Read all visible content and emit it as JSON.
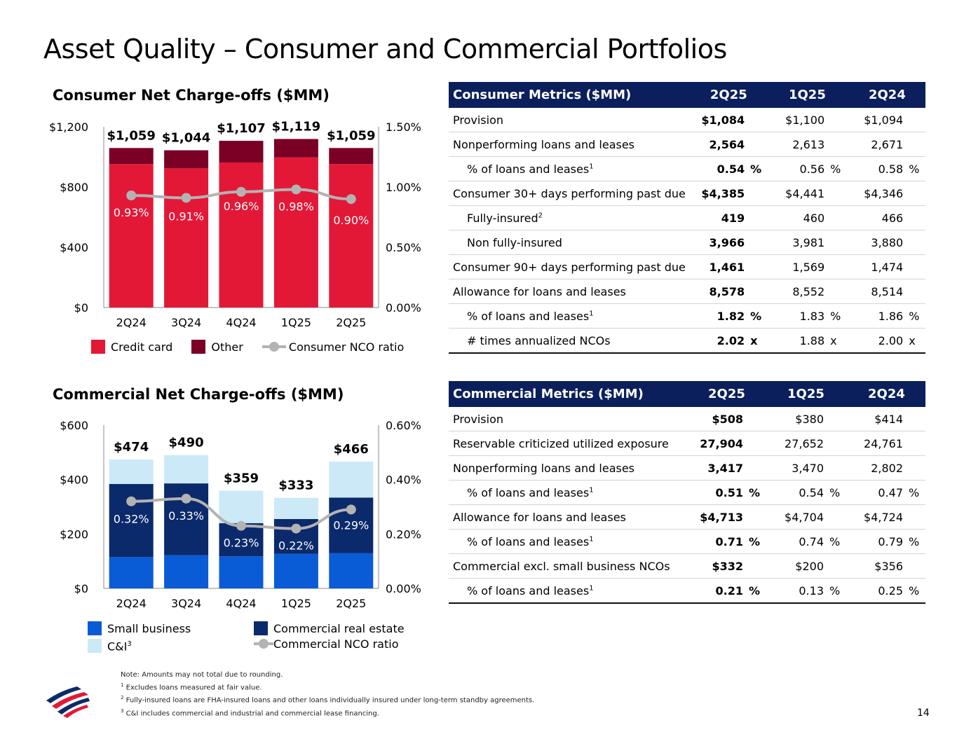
{
  "title": "Asset Quality – Consumer and Commercial Portfolios",
  "page_number": "14",
  "colors": {
    "credit_card": "#e31837",
    "other": "#7a0026",
    "nco": "#b3b3b3",
    "small_business": "#0a5bd6",
    "cre": "#0b2a6b",
    "ci": "#cce9f7",
    "header": "#0b1f5c"
  },
  "consumer_chart": {
    "title": "Consumer Net Charge-offs ($MM)"
  },
  "commercial_chart": {
    "title": "Commercial Net Charge-offs ($MM)"
  },
  "consumer_legend": {
    "credit_card": "Credit card",
    "other": "Other",
    "nco": "Consumer NCO ratio"
  },
  "commercial_legend": {
    "small_business": "Small business",
    "ci": "C&I",
    "ci_sup": "3",
    "cre": "Commercial real estate",
    "nco": "Commercial NCO ratio"
  },
  "chart_data": [
    {
      "type": "bar",
      "title": "Consumer Net Charge-offs ($MM)",
      "categories": [
        "2Q24",
        "3Q24",
        "4Q24",
        "1Q25",
        "2Q25"
      ],
      "series": [
        {
          "name": "Credit card",
          "values": [
            953,
            924,
            963,
            997,
            953
          ]
        },
        {
          "name": "Other",
          "values": [
            106,
            120,
            144,
            122,
            106
          ]
        }
      ],
      "totals": [
        "$1,059",
        "$1,044",
        "$1,107",
        "$1,119",
        "$1,059"
      ],
      "line": {
        "name": "Consumer NCO ratio",
        "values": [
          0.93,
          0.91,
          0.96,
          0.98,
          0.9
        ],
        "labels": [
          "0.93%",
          "0.91%",
          "0.96%",
          "0.98%",
          "0.90%"
        ]
      },
      "ylim": [
        0,
        1200
      ],
      "yticks": [
        "$0",
        "$400",
        "$800",
        "$1,200"
      ],
      "y2lim": [
        0,
        1.5
      ],
      "y2ticks": [
        "0.00%",
        "0.50%",
        "1.00%",
        "1.50%"
      ]
    },
    {
      "type": "bar",
      "title": "Commercial Net Charge-offs ($MM)",
      "categories": [
        "2Q24",
        "3Q24",
        "4Q24",
        "1Q25",
        "2Q25"
      ],
      "series": [
        {
          "name": "Small business",
          "values": [
            115,
            122,
            118,
            127,
            130
          ]
        },
        {
          "name": "Commercial real estate",
          "values": [
            269,
            264,
            122,
            128,
            204
          ]
        },
        {
          "name": "C&I",
          "values": [
            90,
            104,
            119,
            78,
            132
          ]
        }
      ],
      "totals": [
        "$474",
        "$490",
        "$359",
        "$333",
        "$466"
      ],
      "line": {
        "name": "Commercial NCO ratio",
        "values": [
          0.32,
          0.33,
          0.23,
          0.22,
          0.29
        ],
        "labels": [
          "0.32%",
          "0.33%",
          "0.23%",
          "0.22%",
          "0.29%"
        ]
      },
      "ylim": [
        0,
        600
      ],
      "yticks": [
        "$0",
        "$200",
        "$400",
        "$600"
      ],
      "y2lim": [
        0,
        0.6
      ],
      "y2ticks": [
        "0.00%",
        "0.20%",
        "0.40%",
        "0.60%"
      ]
    }
  ],
  "consumer_table": {
    "headers": [
      "Consumer Metrics ($MM)",
      "2Q25",
      "1Q25",
      "2Q24"
    ],
    "rows": [
      {
        "label": "Provision",
        "sup": "",
        "indent": false,
        "values": [
          "$1,084",
          "$1,100",
          "$1,094"
        ],
        "unit": ""
      },
      {
        "label": "Nonperforming loans and leases",
        "sup": "",
        "indent": false,
        "values": [
          "2,564",
          "2,613",
          "2,671"
        ],
        "unit": ""
      },
      {
        "label": "% of loans and leases",
        "sup": "1",
        "indent": true,
        "values": [
          "0.54",
          "0.56",
          "0.58"
        ],
        "unit": "%"
      },
      {
        "label": "Consumer 30+ days performing past due",
        "sup": "",
        "indent": false,
        "values": [
          "$4,385",
          "$4,441",
          "$4,346"
        ],
        "unit": ""
      },
      {
        "label": "Fully-insured",
        "sup": "2",
        "indent": true,
        "values": [
          "419",
          "460",
          "466"
        ],
        "unit": ""
      },
      {
        "label": "Non fully-insured",
        "sup": "",
        "indent": true,
        "values": [
          "3,966",
          "3,981",
          "3,880"
        ],
        "unit": ""
      },
      {
        "label": "Consumer 90+ days performing past due",
        "sup": "",
        "indent": false,
        "values": [
          "1,461",
          "1,569",
          "1,474"
        ],
        "unit": ""
      },
      {
        "label": "Allowance for loans and leases",
        "sup": "",
        "indent": false,
        "values": [
          "8,578",
          "8,552",
          "8,514"
        ],
        "unit": ""
      },
      {
        "label": "% of loans and leases",
        "sup": "1",
        "indent": true,
        "values": [
          "1.82",
          "1.83",
          "1.86"
        ],
        "unit": "%"
      },
      {
        "label": "# times annualized NCOs",
        "sup": "",
        "indent": true,
        "values": [
          "2.02",
          "1.88",
          "2.00"
        ],
        "unit": "x"
      }
    ]
  },
  "commercial_table": {
    "headers": [
      "Commercial Metrics ($MM)",
      "2Q25",
      "1Q25",
      "2Q24"
    ],
    "rows": [
      {
        "label": "Provision",
        "sup": "",
        "indent": false,
        "values": [
          "$508",
          "$380",
          "$414"
        ],
        "unit": ""
      },
      {
        "label": "Reservable criticized utilized exposure",
        "sup": "",
        "indent": false,
        "values": [
          "27,904",
          "27,652",
          "24,761"
        ],
        "unit": ""
      },
      {
        "label": "Nonperforming loans and leases",
        "sup": "",
        "indent": false,
        "values": [
          "3,417",
          "3,470",
          "2,802"
        ],
        "unit": ""
      },
      {
        "label": "% of loans and leases",
        "sup": "1",
        "indent": true,
        "values": [
          "0.51",
          "0.54",
          "0.47"
        ],
        "unit": "%"
      },
      {
        "label": "Allowance for loans and leases",
        "sup": "",
        "indent": false,
        "values": [
          "$4,713",
          "$4,704",
          "$4,724"
        ],
        "unit": ""
      },
      {
        "label": "% of loans and leases",
        "sup": "1",
        "indent": true,
        "values": [
          "0.71",
          "0.74",
          "0.79"
        ],
        "unit": "%"
      },
      {
        "label": "Commercial excl. small business NCOs",
        "sup": "",
        "indent": false,
        "values": [
          "$332",
          "$200",
          "$356"
        ],
        "unit": ""
      },
      {
        "label": "% of loans and leases",
        "sup": "1",
        "indent": true,
        "values": [
          "0.21",
          "0.13",
          "0.25"
        ],
        "unit": "%"
      }
    ]
  },
  "footnotes": [
    {
      "sup": "",
      "text": "Note: Amounts may not total due to rounding."
    },
    {
      "sup": "1",
      "text": "Excludes loans measured at fair value."
    },
    {
      "sup": "2",
      "text": "Fully-insured loans are FHA-insured loans and other loans individually insured under long-term standby agreements."
    },
    {
      "sup": "3",
      "text": "C&I includes commercial and industrial and commercial lease financing."
    }
  ]
}
